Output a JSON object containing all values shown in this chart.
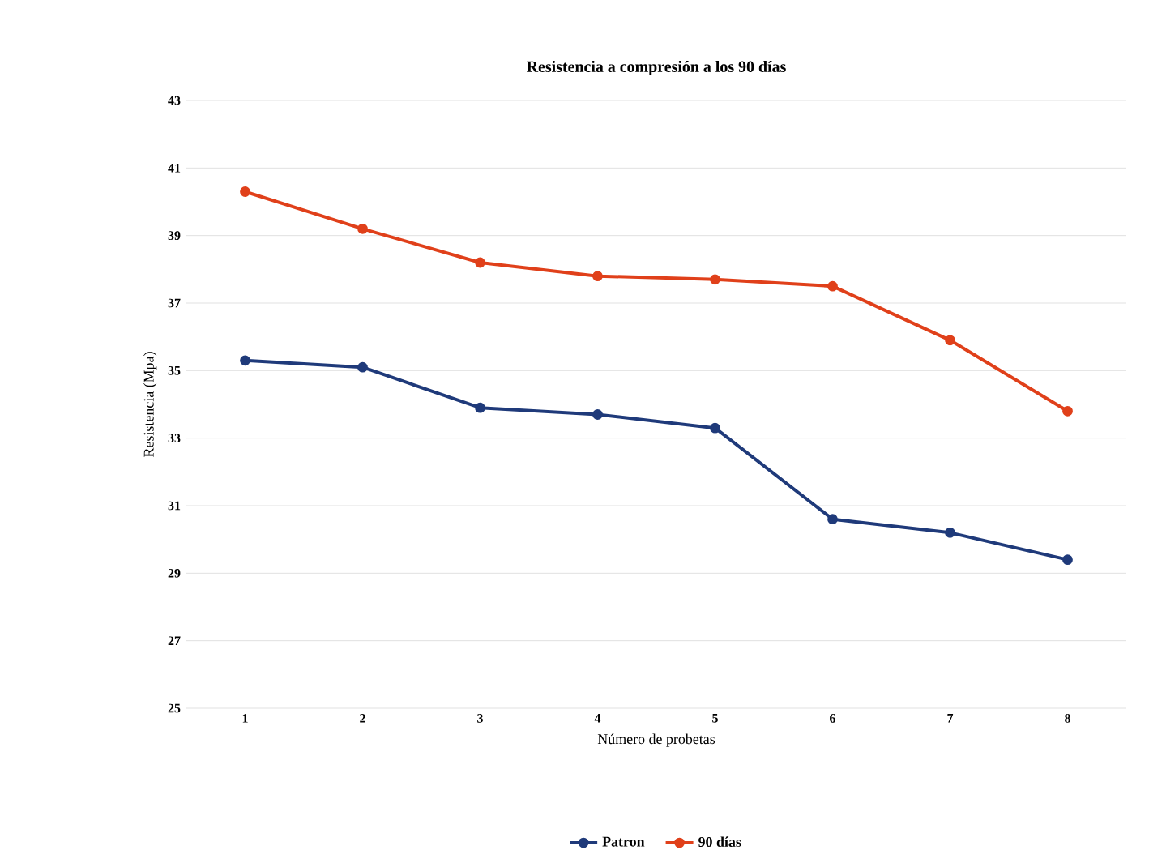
{
  "chart_data": {
    "type": "line",
    "title": "Resistencia a compresión a los 90 días",
    "xlabel": "Número de probetas",
    "ylabel": "Resistencia (Mpa)",
    "categories": [
      "1",
      "2",
      "3",
      "4",
      "5",
      "6",
      "7",
      "8"
    ],
    "series": [
      {
        "name": "Patron",
        "color": "#1f3a7a",
        "values": [
          35.3,
          35.1,
          33.9,
          33.7,
          33.3,
          30.6,
          30.2,
          29.4
        ]
      },
      {
        "name": "90 días",
        "color": "#e0401a",
        "values": [
          40.3,
          39.2,
          38.2,
          37.8,
          37.7,
          37.5,
          35.9,
          33.8
        ]
      }
    ],
    "ylim": [
      25,
      43
    ],
    "yticks": [
      25,
      27,
      29,
      31,
      33,
      35,
      37,
      39,
      41,
      43
    ],
    "grid": "y",
    "legend": "bottom",
    "marker": "circle",
    "line_style": "solid"
  }
}
